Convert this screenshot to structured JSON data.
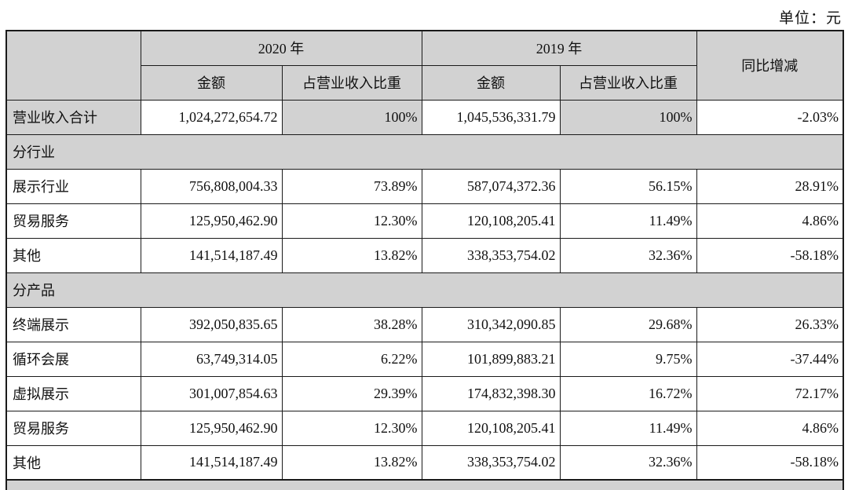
{
  "unit_label": "单位：元",
  "table": {
    "header": {
      "year_2020": "2020 年",
      "year_2019": "2019 年",
      "yoy": "同比增减",
      "amount_2020": "金额",
      "share_2020": "占营业收入比重",
      "amount_2019": "金额",
      "share_2019": "占营业收入比重"
    },
    "rows": [
      {
        "type": "data",
        "shaded": true,
        "label": "营业收入合计",
        "amount_2020": "1,024,272,654.72",
        "share_2020": "100%",
        "amount_2019": "1,045,536,331.79",
        "share_2019": "100%",
        "yoy": "-2.03%"
      },
      {
        "type": "section",
        "label": "分行业"
      },
      {
        "type": "data",
        "shaded": false,
        "label": "展示行业",
        "amount_2020": "756,808,004.33",
        "share_2020": "73.89%",
        "amount_2019": "587,074,372.36",
        "share_2019": "56.15%",
        "yoy": "28.91%"
      },
      {
        "type": "data",
        "shaded": false,
        "label": "贸易服务",
        "amount_2020": "125,950,462.90",
        "share_2020": "12.30%",
        "amount_2019": "120,108,205.41",
        "share_2019": "11.49%",
        "yoy": "4.86%"
      },
      {
        "type": "data",
        "shaded": false,
        "label": "其他",
        "amount_2020": "141,514,187.49",
        "share_2020": "13.82%",
        "amount_2019": "338,353,754.02",
        "share_2019": "32.36%",
        "yoy": "-58.18%"
      },
      {
        "type": "section",
        "label": "分产品"
      },
      {
        "type": "data",
        "shaded": false,
        "label": "终端展示",
        "amount_2020": "392,050,835.65",
        "share_2020": "38.28%",
        "amount_2019": "310,342,090.85",
        "share_2019": "29.68%",
        "yoy": "26.33%"
      },
      {
        "type": "data",
        "shaded": false,
        "label": "循环会展",
        "amount_2020": "63,749,314.05",
        "share_2020": "6.22%",
        "amount_2019": "101,899,883.21",
        "share_2019": "9.75%",
        "yoy": "-37.44%"
      },
      {
        "type": "data",
        "shaded": false,
        "label": "虚拟展示",
        "amount_2020": "301,007,854.63",
        "share_2020": "29.39%",
        "amount_2019": "174,832,398.30",
        "share_2019": "16.72%",
        "yoy": "72.17%"
      },
      {
        "type": "data",
        "shaded": false,
        "label": "贸易服务",
        "amount_2020": "125,950,462.90",
        "share_2020": "12.30%",
        "amount_2019": "120,108,205.41",
        "share_2019": "11.49%",
        "yoy": "4.86%"
      },
      {
        "type": "data",
        "shaded": false,
        "label": "其他",
        "amount_2020": "141,514,187.49",
        "share_2020": "13.82%",
        "amount_2019": "338,353,754.02",
        "share_2019": "32.36%",
        "yoy": "-58.18%"
      }
    ],
    "colors": {
      "header_bg": "#d2d2d2",
      "section_bg": "#d2d2d2",
      "border": "#1a1a1a"
    }
  }
}
